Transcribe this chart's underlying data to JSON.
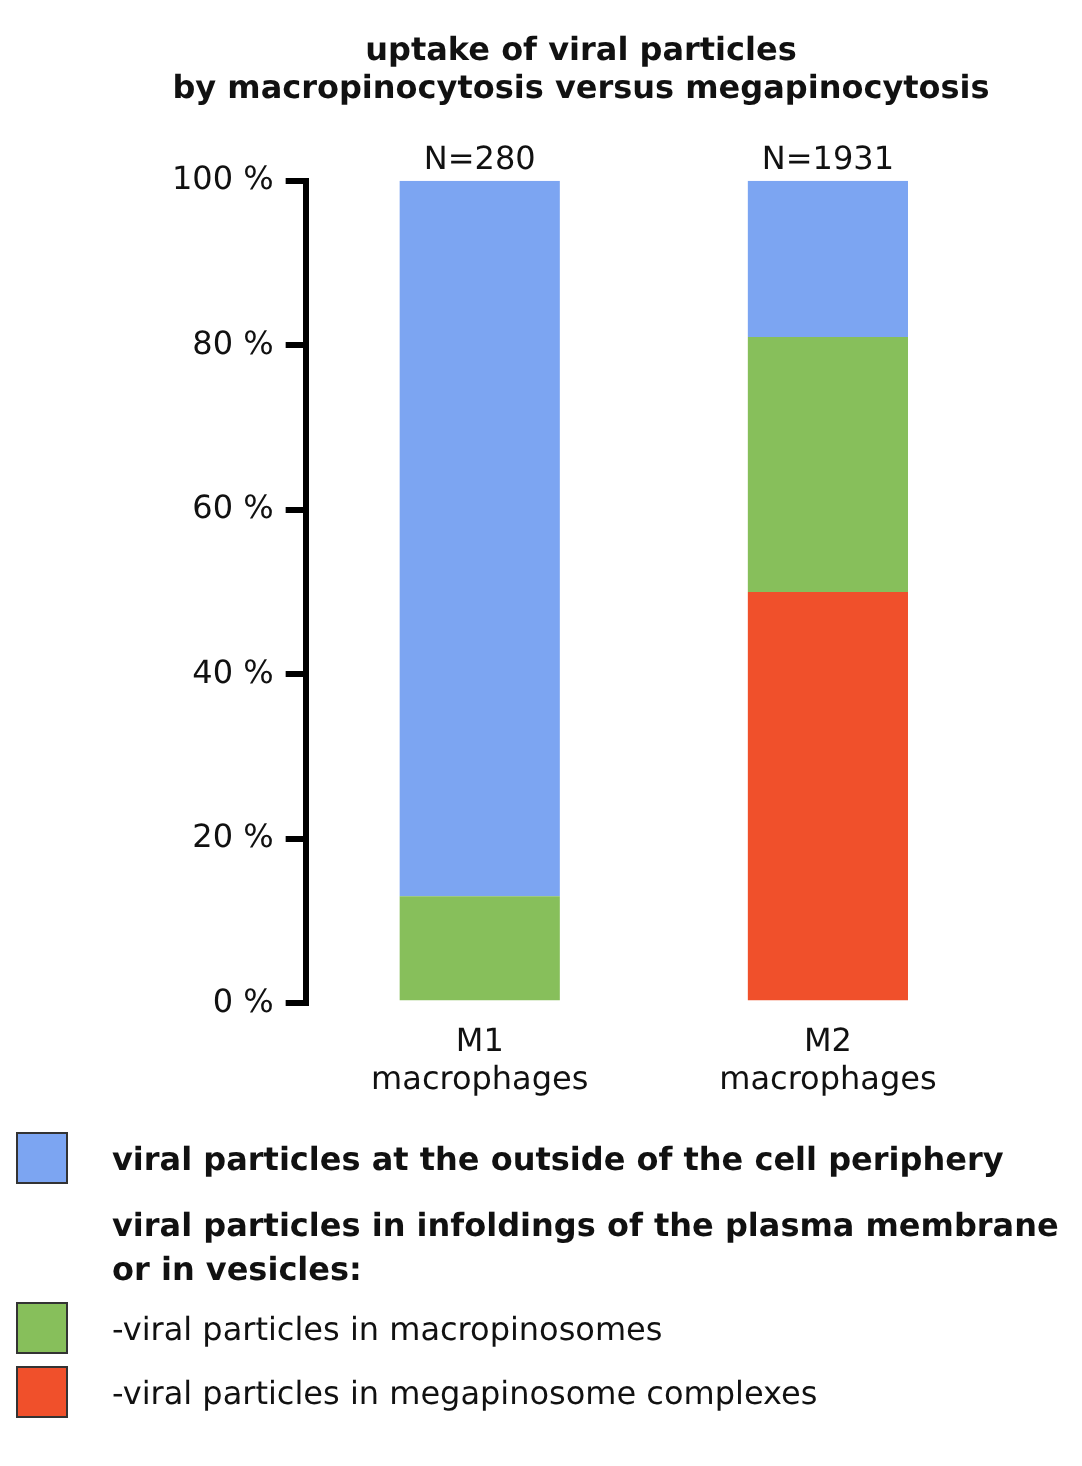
{
  "chart_data": {
    "type": "bar",
    "title": "uptake of viral particles\nby macropinocytosis versus megapinocytosis",
    "categories": [
      "M1\nmacrophages",
      "M2\nmacrophages"
    ],
    "stacked": true,
    "series": [
      {
        "name": "-viral particles in megapinosome complexes",
        "color": "#f0502b",
        "values": [
          0,
          50
        ]
      },
      {
        "name": "-viral particles in macropinosomes",
        "color": "#87bf5b",
        "values": [
          13,
          31
        ]
      },
      {
        "name": "viral particles at the outside of the cell periphery",
        "color": "#7ca5f2",
        "values": [
          87,
          19
        ]
      }
    ],
    "ylim": [
      0,
      100
    ],
    "yticks": [
      {
        "value": 0,
        "label": "0 %"
      },
      {
        "value": 20,
        "label": "20 %"
      },
      {
        "value": 40,
        "label": "40 %"
      },
      {
        "value": 60,
        "label": "60 %"
      },
      {
        "value": 80,
        "label": "80 %"
      },
      {
        "value": 100,
        "label": "100 %"
      }
    ],
    "legend": "bottom",
    "grid": false,
    "annotations": [
      "viral particles in infoldings of the plasma membrane\nor in vesicles:",
      {
        "text": "N=280",
        "x": "M1\nmacrophages",
        "y": 100
      },
      {
        "text": "N=1931",
        "x": "M2\nmacrophages",
        "y": 100
      }
    ]
  }
}
